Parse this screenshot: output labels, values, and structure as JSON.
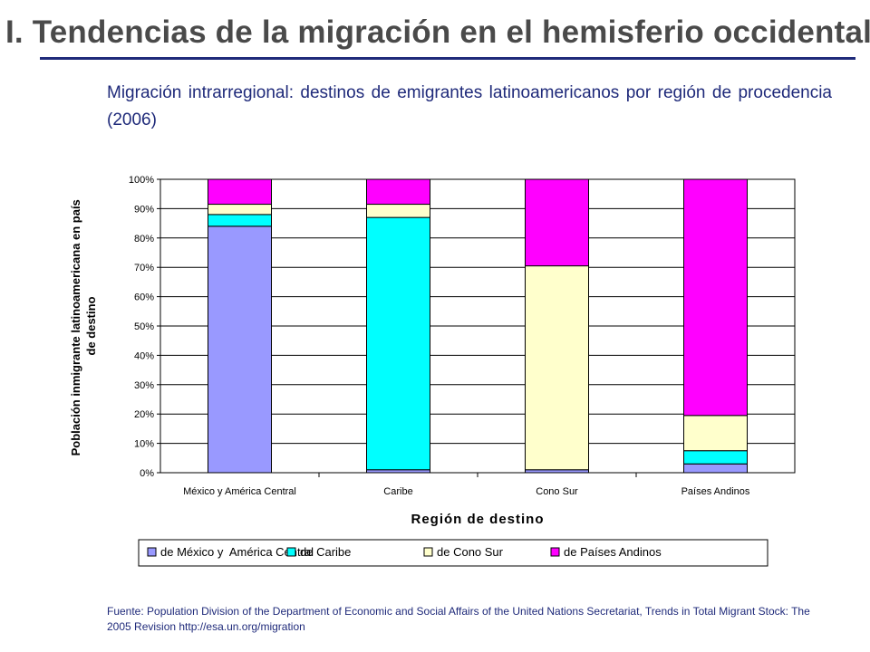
{
  "slide": {
    "title": "I. Tendencias  de la migración en el hemisferio occidental",
    "subtitle": "Migración intrarregional: destinos de emigrantes latinoamericanos por región de procedencia (2006)",
    "source": "Fuente: Population Division of the Department of Economic and Social Affairs of the United Nations Secretariat, Trends in Total Migrant Stock: The 2005 Revision http://esa.un.org/migration"
  },
  "colors": {
    "title": "#4a4a4a",
    "accent": "#1f2a7a",
    "gridline": "#000000"
  },
  "chart_data": {
    "type": "bar",
    "stacked": true,
    "title": "",
    "xlabel": "Región de destino",
    "ylabel": "Población inmigrante latinoamericana en país de destino",
    "categories": [
      "México y América Central",
      "Caribe",
      "Cono Sur",
      "Países Andinos"
    ],
    "ylim": [
      0,
      100
    ],
    "yticks": [
      "0%",
      "10%",
      "20%",
      "30%",
      "40%",
      "50%",
      "60%",
      "70%",
      "80%",
      "90%",
      "100%"
    ],
    "grid": true,
    "legend_position": "bottom",
    "series": [
      {
        "name": "de México y  América Central",
        "color": "#9999ff",
        "values": [
          84,
          1,
          1,
          3
        ]
      },
      {
        "name": "de Caribe",
        "color": "#00ffff",
        "values": [
          4,
          86,
          0,
          4.5
        ]
      },
      {
        "name": "de Cono Sur",
        "color": "#ffffcc",
        "values": [
          3.5,
          4.5,
          69.5,
          12
        ]
      },
      {
        "name": "de Países Andinos",
        "color": "#ff00ff",
        "values": [
          8.5,
          8.5,
          29.5,
          80.5
        ]
      }
    ]
  }
}
